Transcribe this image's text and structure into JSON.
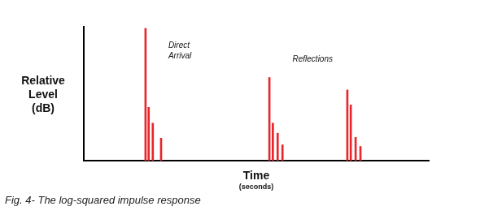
{
  "chart_data": {
    "type": "bar",
    "ylabel": "Relative Level (dB)",
    "xlabel": "Time (seconds)",
    "caption": "Fig. 4- The log-squared impulse response",
    "annotations": [
      "Direct Arrival",
      "Reflections"
    ],
    "x": [
      17.9,
      18.8,
      20.0,
      22.4,
      53.8,
      54.8,
      56.2,
      57.6,
      76.4,
      77.4,
      78.8,
      80.2
    ],
    "values": [
      98.8,
      39.8,
      28.0,
      16.8,
      62.1,
      28.0,
      20.5,
      11.8,
      52.8,
      41.6,
      17.4,
      10.6
    ],
    "color": "#e8262c",
    "xlim": [
      0,
      100
    ],
    "ylim": [
      0,
      100
    ],
    "grid": false,
    "tick_labels": false
  }
}
